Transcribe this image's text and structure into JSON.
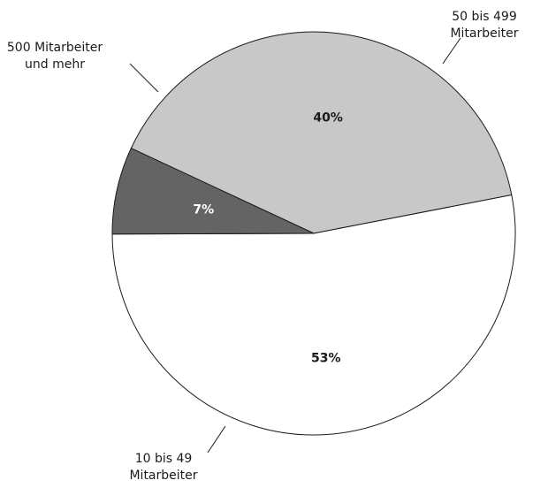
{
  "chart_data": {
    "type": "pie",
    "categories": [
      "50 bis 499 Mitarbeiter",
      "10 bis 49 Mitarbeiter",
      "500 Mitarbeiter und mehr"
    ],
    "values": [
      40,
      53,
      7
    ],
    "value_labels": [
      "40%",
      "53%",
      "7%"
    ],
    "category_lines": [
      [
        "50 bis 499",
        "Mitarbeiter"
      ],
      [
        "10 bis 49",
        "Mitarbeiter"
      ],
      [
        "500 Mitarbeiter",
        "und mehr"
      ]
    ],
    "colors": [
      "#c8c8c8",
      "#ffffff",
      "#646464"
    ],
    "label_colors": [
      "#1a1a1a",
      "#1a1a1a",
      "#ffffff"
    ],
    "edge_color": "#1a1a1a",
    "legend": "none"
  }
}
